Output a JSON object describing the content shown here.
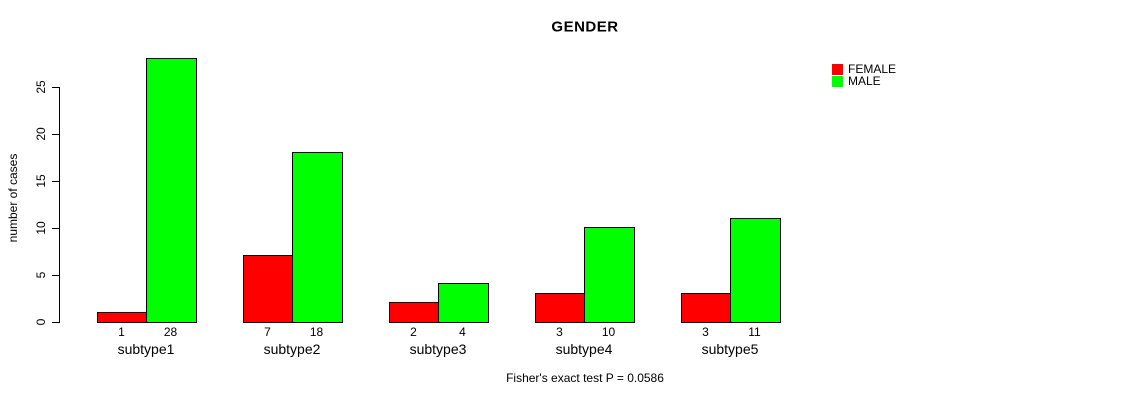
{
  "chart_data": {
    "type": "bar",
    "title": "GENDER",
    "xlabel": "",
    "ylabel": "number of cases",
    "categories": [
      "subtype1",
      "subtype2",
      "subtype3",
      "subtype4",
      "subtype5"
    ],
    "series": [
      {
        "name": "FEMALE",
        "color": "#ff0000",
        "values": [
          1,
          7,
          2,
          3,
          3
        ]
      },
      {
        "name": "MALE",
        "color": "#00ff00",
        "values": [
          28,
          18,
          4,
          10,
          11
        ]
      }
    ],
    "yticks": [
      0,
      5,
      10,
      15,
      20,
      25
    ],
    "ylim": [
      0,
      28
    ],
    "grid": false,
    "grouped": true,
    "bar_value_labels": true,
    "legend_position": "top-right",
    "annotation": "Fisher's exact test P = 0.0586"
  },
  "legend": {
    "items": [
      {
        "label": "FEMALE",
        "color": "#ff0000"
      },
      {
        "label": "MALE",
        "color": "#00ff00"
      }
    ]
  },
  "colors": {
    "female": "#ff0000",
    "male": "#00ff00",
    "axis": "#000000",
    "text": "#000000",
    "background": "#ffffff"
  }
}
